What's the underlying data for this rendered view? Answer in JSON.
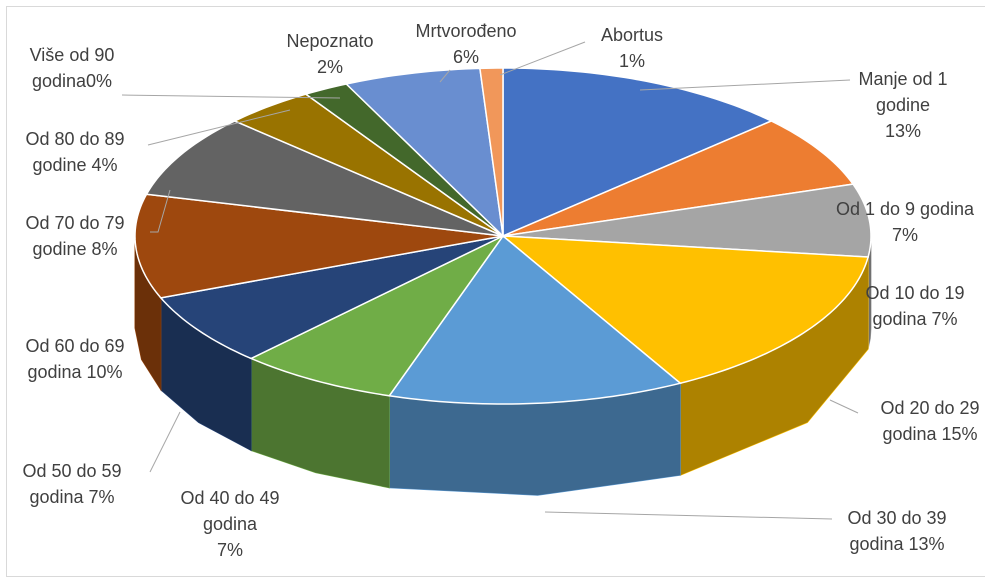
{
  "chart_data": {
    "type": "pie",
    "style": "3d",
    "categories": [
      "Manje od 1 godine",
      "Od 1 do 9 godina",
      "Od 10 do 19 godina",
      "Od 20 do 29 godina",
      "Od 30 do 39 godina",
      "Od 40 do 49 godina",
      "Od 50 do 59 godina",
      "Od 60 do 69 godina",
      "Od 70 do 79 godine",
      "Od 80 do 89 godine",
      "Više od 90 godina",
      "Nepoznato",
      "Mrtvorođeno",
      "Abortus"
    ],
    "values": [
      13,
      7,
      7,
      15,
      13,
      7,
      7,
      10,
      8,
      4,
      0,
      2,
      6,
      1
    ],
    "value_labels": [
      "13%",
      "7%",
      "7%",
      "15%",
      "13%",
      "7%",
      "7%",
      "10%",
      "8%",
      "4%",
      "0%",
      "2%",
      "6%",
      "1%"
    ],
    "colors": [
      "#4472c4",
      "#ed7d31",
      "#a5a5a5",
      "#ffc000",
      "#5b9bd5",
      "#70ad47",
      "#264478",
      "#9e480e",
      "#636363",
      "#997300",
      "#255e91",
      "#43682b",
      "#698ed0",
      "#f1975a"
    ]
  }
}
